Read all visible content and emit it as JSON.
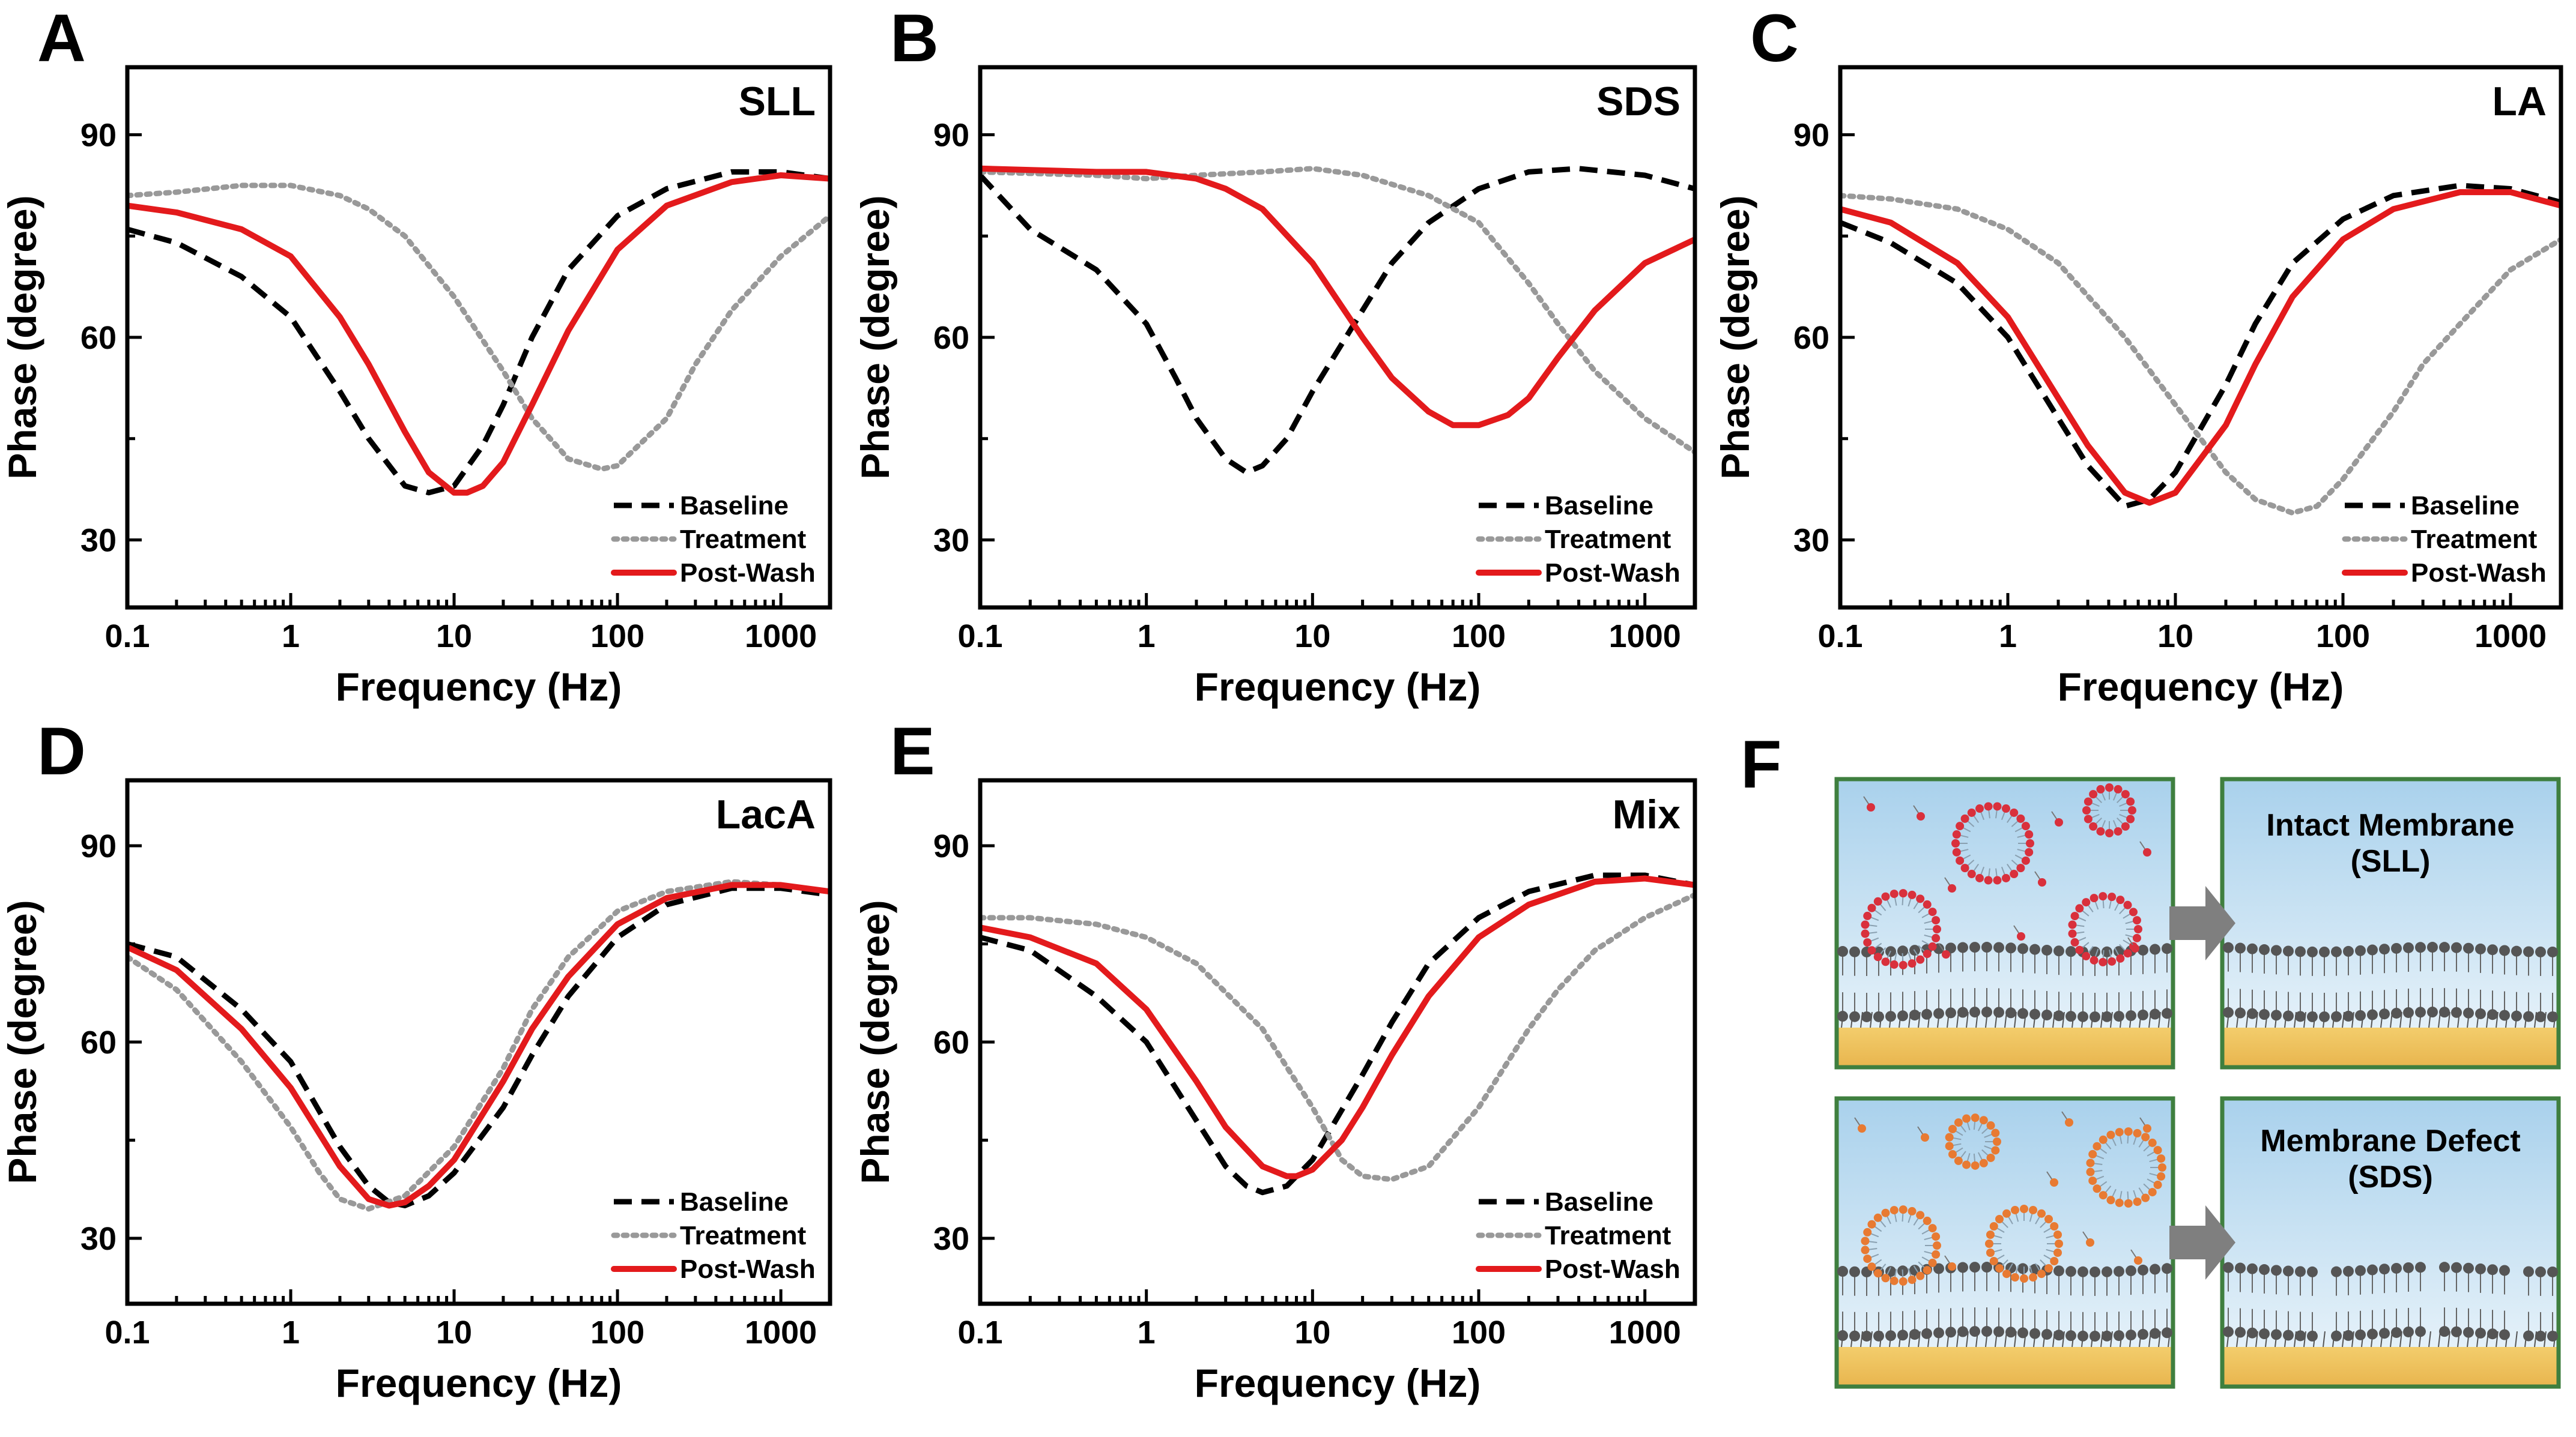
{
  "chart_data": [
    {
      "panel_letter": "A",
      "title": "SLL",
      "type": "line",
      "xlabel": "Frequency (Hz)",
      "ylabel": "Phase (degree)",
      "xscale": "log",
      "xlim": [
        0.1,
        2000
      ],
      "ylim": [
        20,
        100
      ],
      "xticks": [
        "0.1",
        "1",
        "10",
        "100",
        "1000"
      ],
      "yticks": [
        "30",
        "60",
        "90"
      ],
      "legend_position": "bottom-right",
      "grid": false,
      "series": [
        {
          "name": "Baseline",
          "color": "#000000",
          "style": "dashed",
          "x": [
            0.1,
            0.2,
            0.5,
            1,
            2,
            3,
            5,
            7,
            10,
            15,
            20,
            30,
            50,
            100,
            200,
            500,
            1000,
            2000
          ],
          "y": [
            76,
            74,
            69,
            63,
            52,
            45,
            38,
            37,
            38,
            44,
            50,
            60,
            70,
            78,
            82,
            84.5,
            84.5,
            83.5
          ]
        },
        {
          "name": "Treatment",
          "color": "#999999",
          "style": "dotted",
          "x": [
            0.1,
            0.2,
            0.5,
            1,
            2,
            3,
            5,
            10,
            20,
            30,
            50,
            80,
            100,
            200,
            300,
            500,
            1000,
            2000
          ],
          "y": [
            81,
            81.5,
            82.5,
            82.5,
            81,
            79,
            75,
            66,
            55,
            48,
            42,
            40.5,
            41,
            48,
            56,
            64,
            72,
            78
          ]
        },
        {
          "name": "Post-Wash",
          "color": "#e31a1c",
          "style": "solid",
          "x": [
            0.1,
            0.2,
            0.5,
            1,
            2,
            3,
            5,
            7,
            10,
            12,
            15,
            20,
            30,
            50,
            100,
            200,
            500,
            1000,
            2000
          ],
          "y": [
            79.5,
            78.5,
            76,
            72,
            63,
            56,
            46,
            40,
            37,
            37,
            38,
            41.5,
            50,
            61,
            73,
            79.5,
            83,
            84,
            83.5
          ]
        }
      ]
    },
    {
      "panel_letter": "B",
      "title": "SDS",
      "type": "line",
      "xlabel": "Frequency (Hz)",
      "ylabel": "Phase (degree)",
      "xscale": "log",
      "xlim": [
        0.1,
        2000
      ],
      "ylim": [
        20,
        100
      ],
      "xticks": [
        "0.1",
        "1",
        "10",
        "100",
        "1000"
      ],
      "yticks": [
        "30",
        "60",
        "90"
      ],
      "legend_position": "bottom-right",
      "grid": false,
      "series": [
        {
          "name": "Baseline",
          "color": "#000000",
          "style": "dashed",
          "x": [
            0.1,
            0.2,
            0.5,
            1,
            1.5,
            2,
            3,
            4,
            5,
            7,
            10,
            20,
            30,
            50,
            100,
            200,
            400,
            1000,
            2000
          ],
          "y": [
            84,
            76,
            70,
            62,
            54,
            48,
            42,
            40,
            41,
            45,
            52,
            64,
            71,
            77,
            82,
            84.5,
            85,
            84,
            82
          ]
        },
        {
          "name": "Treatment",
          "color": "#999999",
          "style": "dotted",
          "x": [
            0.1,
            0.5,
            1,
            2,
            5,
            10,
            20,
            50,
            100,
            200,
            300,
            500,
            1000,
            2000
          ],
          "y": [
            84.5,
            84,
            83.5,
            84,
            84.5,
            85,
            84,
            81,
            77,
            68,
            62,
            55,
            48,
            43
          ]
        },
        {
          "name": "Post-Wash",
          "color": "#e31a1c",
          "style": "solid",
          "x": [
            0.1,
            0.5,
            1,
            2,
            3,
            5,
            10,
            20,
            30,
            50,
            70,
            100,
            150,
            200,
            300,
            500,
            1000,
            2000
          ],
          "y": [
            85,
            84.5,
            84.5,
            83.5,
            82,
            79,
            71,
            60,
            54,
            49,
            47,
            47,
            48.5,
            51,
            57,
            64,
            71,
            74.5
          ]
        }
      ]
    },
    {
      "panel_letter": "C",
      "title": "LA",
      "type": "line",
      "xlabel": "Frequency (Hz)",
      "ylabel": "Phase (degree)",
      "xscale": "log",
      "xlim": [
        0.1,
        2000
      ],
      "ylim": [
        20,
        100
      ],
      "xticks": [
        "0.1",
        "1",
        "10",
        "100",
        "1000"
      ],
      "yticks": [
        "30",
        "60",
        "90"
      ],
      "legend_position": "bottom-right",
      "grid": false,
      "series": [
        {
          "name": "Baseline",
          "color": "#000000",
          "style": "dashed",
          "x": [
            0.1,
            0.2,
            0.5,
            1,
            2,
            3,
            5,
            7,
            10,
            20,
            30,
            50,
            100,
            200,
            500,
            1000,
            2000
          ],
          "y": [
            77,
            74,
            68,
            60,
            48,
            41,
            35,
            36,
            40,
            53,
            62,
            71,
            77.5,
            81,
            82.5,
            82,
            80
          ]
        },
        {
          "name": "Treatment",
          "color": "#999999",
          "style": "dotted",
          "x": [
            0.1,
            0.2,
            0.5,
            1,
            2,
            5,
            10,
            20,
            30,
            50,
            70,
            100,
            200,
            300,
            500,
            1000,
            2000
          ],
          "y": [
            81,
            80.5,
            79,
            76,
            71,
            60,
            50,
            40,
            36,
            34,
            35,
            39,
            49,
            56,
            62,
            70,
            74.5
          ]
        },
        {
          "name": "Post-Wash",
          "color": "#e31a1c",
          "style": "solid",
          "x": [
            0.1,
            0.2,
            0.5,
            1,
            2,
            3,
            5,
            7,
            10,
            20,
            30,
            50,
            100,
            200,
            500,
            1000,
            2000
          ],
          "y": [
            79,
            77,
            71,
            63,
            51,
            44,
            37,
            35.5,
            37,
            47,
            56,
            66,
            74.5,
            79,
            81.5,
            81.5,
            79.5
          ]
        }
      ]
    },
    {
      "panel_letter": "D",
      "title": "LacA",
      "type": "line",
      "xlabel": "Frequency (Hz)",
      "ylabel": "Phase (degree)",
      "xscale": "log",
      "xlim": [
        0.1,
        2000
      ],
      "ylim": [
        20,
        100
      ],
      "xticks": [
        "0.1",
        "1",
        "10",
        "100",
        "1000"
      ],
      "yticks": [
        "30",
        "60",
        "90"
      ],
      "legend_position": "bottom-right",
      "grid": false,
      "series": [
        {
          "name": "Baseline",
          "color": "#000000",
          "style": "dashed",
          "x": [
            0.1,
            0.2,
            0.5,
            1,
            2,
            3,
            4,
            5,
            7,
            10,
            20,
            30,
            50,
            100,
            200,
            500,
            1000,
            2000
          ],
          "y": [
            75,
            73,
            65,
            57,
            44,
            38,
            35.5,
            35,
            36.5,
            40,
            50,
            58,
            67,
            76,
            81,
            83.5,
            83.5,
            82.5
          ]
        },
        {
          "name": "Treatment",
          "color": "#999999",
          "style": "dotted",
          "x": [
            0.1,
            0.2,
            0.5,
            1,
            1.5,
            2,
            3,
            5,
            10,
            20,
            30,
            50,
            100,
            200,
            500,
            1000,
            2000
          ],
          "y": [
            73,
            68,
            57,
            47,
            40,
            36,
            34.5,
            36.5,
            44,
            56,
            65,
            73,
            80,
            83,
            84.5,
            84,
            83
          ]
        },
        {
          "name": "Post-Wash",
          "color": "#e31a1c",
          "style": "solid",
          "x": [
            0.1,
            0.2,
            0.5,
            1,
            2,
            3,
            4,
            5,
            7,
            10,
            20,
            30,
            50,
            100,
            200,
            500,
            1000,
            2000
          ],
          "y": [
            74.5,
            71,
            62,
            53,
            41,
            36,
            35,
            35.5,
            38,
            42,
            54,
            62,
            70,
            78,
            82,
            84,
            84,
            83
          ]
        }
      ]
    },
    {
      "panel_letter": "E",
      "title": "Mix",
      "type": "line",
      "xlabel": "Frequency (Hz)",
      "ylabel": "Phase (degree)",
      "xscale": "log",
      "xlim": [
        0.1,
        2000
      ],
      "ylim": [
        20,
        100
      ],
      "xticks": [
        "0.1",
        "1",
        "10",
        "100",
        "1000"
      ],
      "yticks": [
        "30",
        "60",
        "90"
      ],
      "legend_position": "bottom-right",
      "grid": false,
      "series": [
        {
          "name": "Baseline",
          "color": "#000000",
          "style": "dashed",
          "x": [
            0.1,
            0.2,
            0.5,
            1,
            2,
            3,
            4,
            5,
            7,
            10,
            20,
            30,
            50,
            100,
            200,
            500,
            1000,
            2000
          ],
          "y": [
            76,
            74,
            67,
            60,
            48,
            41,
            38,
            37,
            38,
            42,
            55,
            63,
            72,
            79,
            83,
            85.5,
            85.5,
            84
          ]
        },
        {
          "name": "Treatment",
          "color": "#999999",
          "style": "dotted",
          "x": [
            0.1,
            0.2,
            0.5,
            1,
            2,
            5,
            10,
            15,
            20,
            30,
            50,
            100,
            200,
            300,
            500,
            1000,
            2000
          ],
          "y": [
            79,
            79,
            78,
            76,
            72,
            62,
            50,
            42,
            39.5,
            39,
            41,
            50,
            62,
            68,
            74,
            79,
            82.5
          ]
        },
        {
          "name": "Post-Wash",
          "color": "#e31a1c",
          "style": "solid",
          "x": [
            0.1,
            0.2,
            0.5,
            1,
            2,
            3,
            5,
            7,
            8,
            10,
            15,
            20,
            30,
            50,
            100,
            200,
            500,
            1000,
            2000
          ],
          "y": [
            77.5,
            76,
            72,
            65,
            54,
            47,
            41,
            39.5,
            39.5,
            40.5,
            45,
            50,
            58,
            67,
            76,
            81,
            84.5,
            85,
            84
          ]
        }
      ]
    }
  ],
  "panel_f": {
    "letter": "F",
    "top_label": [
      "Intact Membrane",
      "(SLL)"
    ],
    "bottom_label": [
      "Membrane Defect",
      "(SDS)"
    ]
  },
  "colors": {
    "baseline": "#000000",
    "treatment": "#999999",
    "postwash": "#e31a1c",
    "panel_frame": "#3f7f3f",
    "sky_top": "#a9d1ec",
    "sky_bottom": "#eef6fb",
    "gold": "#e8b54e",
    "lipid_head": "#555555",
    "vesicle_red": "#d9303c",
    "vesicle_orange": "#e87a32",
    "arrow": "#7f7f7f"
  }
}
